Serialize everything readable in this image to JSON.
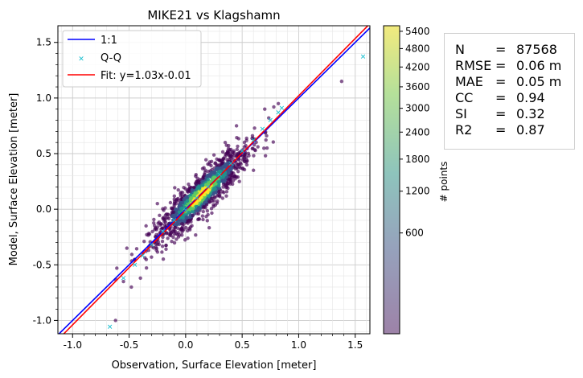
{
  "chart_data": {
    "type": "scatter",
    "title": "MIKE21 vs Klagshamn",
    "xlabel": "Observation, Surface Elevation [meter]",
    "ylabel": "Model, Surface Elevation [meter]",
    "xlim": [
      -1.13,
      1.63
    ],
    "ylim": [
      -1.12,
      1.65
    ],
    "x_ticks": [
      "-1.0",
      "-0.5",
      "0.0",
      "0.5",
      "1.0",
      "1.5"
    ],
    "y_ticks": [
      "-1.0",
      "-0.5",
      "0.0",
      "0.5",
      "1.0",
      "1.5"
    ],
    "grid": true,
    "legend_position": "upper-left",
    "legend": [
      "1:1",
      "Q-Q",
      "Fit: y=1.03x-0.01"
    ],
    "lines": [
      {
        "name": "1:1",
        "slope": 1.0,
        "intercept": 0.0,
        "color": "#0000ff"
      },
      {
        "name": "Fit: y=1.03x-0.01",
        "slope": 1.03,
        "intercept": -0.01,
        "color": "#ff0000"
      }
    ],
    "qq_points": [
      [
        -0.67,
        -1.06
      ],
      [
        -0.55,
        -0.62
      ],
      [
        -0.45,
        -0.5
      ],
      [
        -0.38,
        -0.42
      ],
      [
        -0.3,
        -0.32
      ],
      [
        -0.2,
        -0.2
      ],
      [
        -0.1,
        -0.1
      ],
      [
        0.0,
        -0.01
      ],
      [
        0.1,
        0.1
      ],
      [
        0.2,
        0.2
      ],
      [
        0.3,
        0.31
      ],
      [
        0.4,
        0.41
      ],
      [
        0.5,
        0.52
      ],
      [
        0.6,
        0.62
      ],
      [
        0.68,
        0.72
      ],
      [
        0.75,
        0.8
      ],
      [
        0.82,
        0.87
      ],
      [
        0.85,
        0.91
      ],
      [
        1.57,
        1.37
      ]
    ],
    "outliers": [
      [
        -0.62,
        -1.0
      ],
      [
        -0.55,
        -0.65
      ],
      [
        -0.48,
        -0.7
      ],
      [
        -0.52,
        -0.35
      ],
      [
        0.7,
        0.9
      ],
      [
        0.78,
        0.92
      ],
      [
        0.82,
        0.95
      ],
      [
        0.72,
        0.55
      ],
      [
        -0.35,
        -0.15
      ],
      [
        0.45,
        0.75
      ],
      [
        1.38,
        1.15
      ],
      [
        -0.4,
        -0.62
      ],
      [
        0.6,
        0.35
      ],
      [
        -0.25,
        0.05
      ],
      [
        0.35,
        0.6
      ]
    ],
    "colorbar": {
      "label": "# points",
      "ticks": [
        "600",
        "1200",
        "1800",
        "2400",
        "3000",
        "3600",
        "4200",
        "4800",
        "5400"
      ],
      "tick_values": [
        600,
        1200,
        1800,
        2400,
        3000,
        3600,
        4200,
        4800,
        5400
      ],
      "colors": [
        "#440154",
        "#3b528b",
        "#21918c",
        "#5ec962",
        "#fde725"
      ]
    },
    "stats": [
      {
        "key": "N",
        "value": "87568"
      },
      {
        "key": "RMSE",
        "value": "0.06 m"
      },
      {
        "key": "MAE",
        "value": "0.05 m"
      },
      {
        "key": "CC",
        "value": "0.94"
      },
      {
        "key": "SI",
        "value": "0.32"
      },
      {
        "key": "R2",
        "value": "0.87"
      }
    ]
  }
}
